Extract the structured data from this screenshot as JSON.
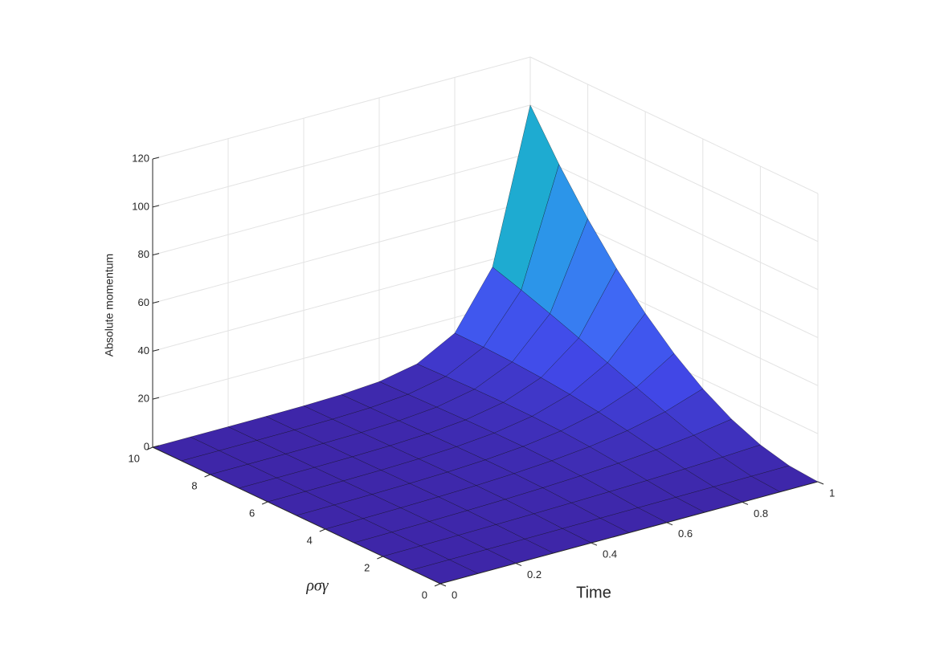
{
  "chart_data": {
    "type": "surface",
    "xlabel": "Time",
    "ylabel": "ρσγ",
    "zlabel": "Absolute momentum",
    "x": [
      0,
      0.1,
      0.2,
      0.3,
      0.4,
      0.5,
      0.6,
      0.7,
      0.8,
      0.9,
      1
    ],
    "y": [
      0,
      1,
      2,
      3,
      4,
      5,
      6,
      7,
      8,
      9,
      10
    ],
    "z": [
      [
        0,
        0,
        0,
        0,
        0,
        0,
        0,
        0,
        0,
        0,
        0
      ],
      [
        0,
        0.06,
        0.13,
        0.2,
        0.29,
        0.38,
        0.48,
        0.59,
        0.71,
        0.85,
        1
      ],
      [
        0,
        0.14,
        0.31,
        0.51,
        0.77,
        1.08,
        1.45,
        1.91,
        2.47,
        3.16,
        4
      ],
      [
        0,
        0.16,
        0.39,
        0.69,
        1.09,
        1.64,
        2.38,
        3.38,
        4.73,
        6.54,
        9
      ],
      [
        0,
        0.15,
        0.37,
        0.69,
        1.18,
        1.91,
        2.99,
        4.61,
        7.03,
        10.63,
        16
      ],
      [
        0,
        0.11,
        0.29,
        0.59,
        1.08,
        1.9,
        3.24,
        5.45,
        9.09,
        15.1,
        25
      ],
      [
        0,
        0.07,
        0.21,
        0.45,
        0.9,
        1.71,
        3.18,
        5.88,
        10.78,
        19.72,
        36
      ],
      [
        0,
        0.05,
        0.14,
        0.32,
        0.69,
        1.44,
        2.94,
        5.96,
        12.05,
        24.31,
        49
      ],
      [
        0,
        0.03,
        0.08,
        0.22,
        0.51,
        1.15,
        2.59,
        5.79,
        12.9,
        28.74,
        64
      ],
      [
        0,
        0.01,
        0.05,
        0.14,
        0.36,
        0.89,
        2.2,
        5.43,
        13.38,
        32.93,
        81
      ],
      [
        0,
        0.01,
        0.03,
        0.09,
        0.24,
        0.67,
        1.83,
        4.97,
        13.53,
        36.79,
        100
      ]
    ],
    "xlim": [
      0,
      1
    ],
    "xticks": [
      0,
      0.2,
      0.4,
      0.6,
      0.8,
      1
    ],
    "ylim": [
      0,
      10
    ],
    "yticks": [
      0,
      2,
      4,
      6,
      8,
      10
    ],
    "zlim": [
      0,
      120
    ],
    "zticks": [
      0,
      20,
      40,
      60,
      80,
      100,
      120
    ],
    "grid": true,
    "colormap": [
      "#3e26a8",
      "#4148e8",
      "#3f6cf6",
      "#2c95ea",
      "#16b6c4",
      "#35c58e",
      "#a7c93a",
      "#f9fb15"
    ]
  }
}
